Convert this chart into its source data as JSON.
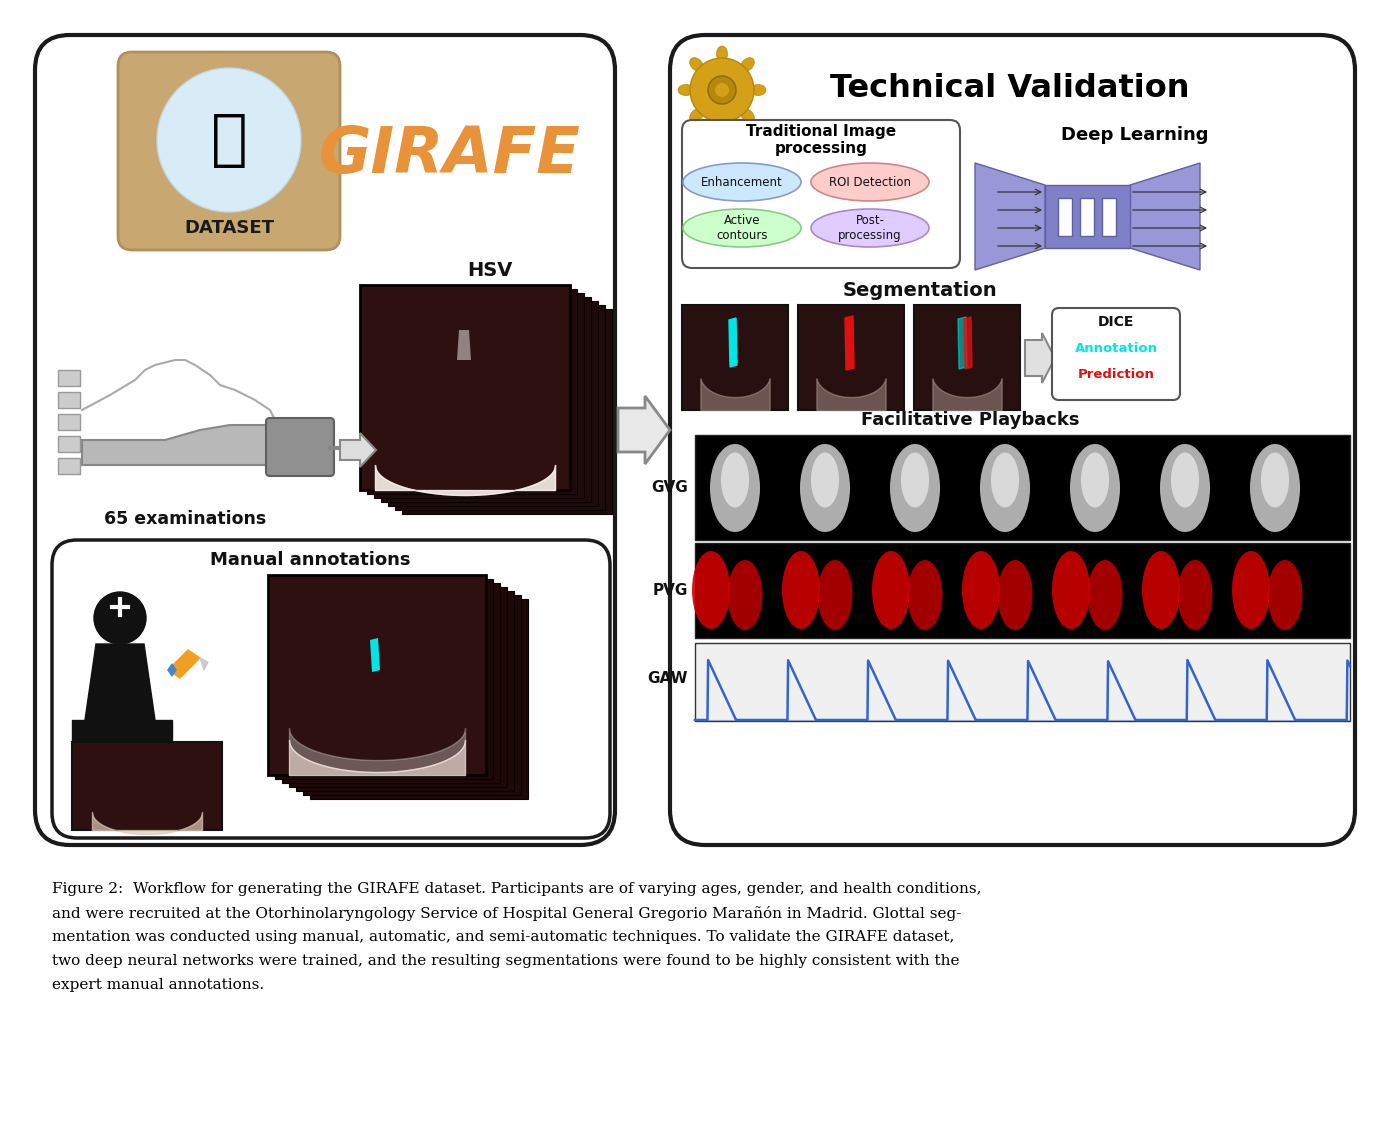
{
  "fig_width": 13.88,
  "fig_height": 11.38,
  "dpi": 100,
  "bg_color": "#ffffff",
  "caption_lines": [
    "Figure 2:  Workflow for generating the GIRAFE dataset. Participants are of varying ages, gender, and health conditions,",
    "and were recruited at the Otorhinolaryngology Service of Hospital General Gregorio Marañón in Madrid. Glottal seg-",
    "mentation was conducted using manual, automatic, and semi-automatic techniques. To validate the GIRAFE dataset,",
    "two deep neural networks were trained, and the resulting segmentations were found to be highly consistent with the",
    "expert manual annotations."
  ],
  "girafe_text": "GIRAFE",
  "girafe_color": "#E8923A",
  "dataset_label": "DATASET",
  "examinations_label": "65 examinations",
  "hsv_label": "HSV",
  "manual_label": "Manual annotations",
  "tech_validation_title": "Technical Validation",
  "trad_proc_title": "Traditional Image\nprocessing",
  "deep_learning_title": "Deep Learning",
  "segmentation_title": "Segmentation",
  "facilitative_title": "Facilitative Playbacks",
  "dice_label": "DICE",
  "annotation_label": "Annotation",
  "prediction_label": "Prediction",
  "gvg_label": "GVG",
  "pvg_label": "PVG",
  "gaw_label": "GAW",
  "enhancement_label": "Enhancement",
  "roi_label": "ROI Detection",
  "active_label": "Active\ncontours",
  "postproc_label": "Post-\nprocessing",
  "cyan_color": "#00e5e5",
  "red_color": "#dd1111",
  "enhancement_color": "#cce8ff",
  "roi_color": "#ffcccc",
  "active_color": "#ccffcc",
  "postproc_color": "#e0ccff",
  "nn_color": "#9898d8",
  "gear_color": "#D4A017",
  "gear_dark": "#B8860B"
}
